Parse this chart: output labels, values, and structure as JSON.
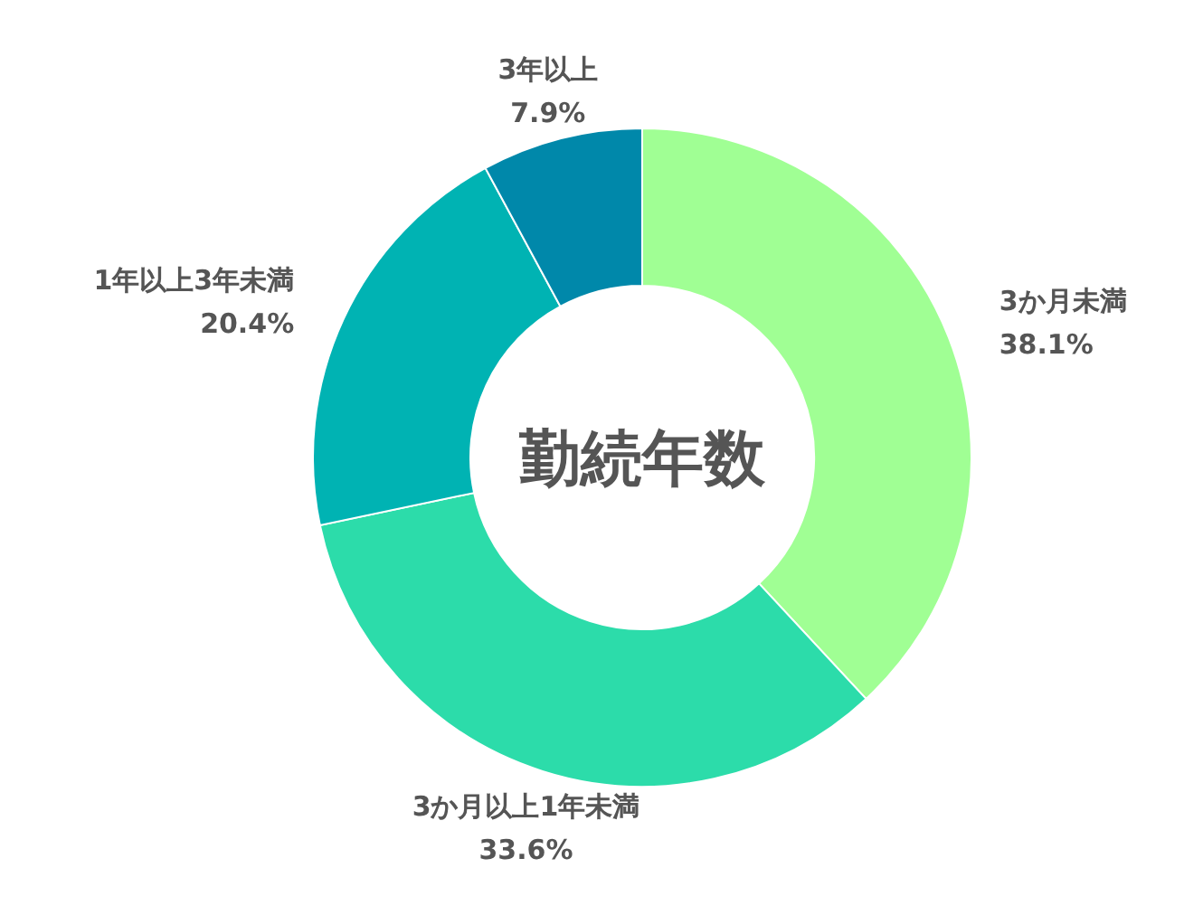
{
  "chart_data": {
    "type": "donut",
    "title": "勤続年数",
    "categories": [
      "3か月未満",
      "3か月以上1年未満",
      "1年以上3年未満",
      "3年以上"
    ],
    "values": [
      38.1,
      33.6,
      20.4,
      7.9
    ],
    "colors": [
      "#a0ff94",
      "#2cdcaa",
      "#00b3b3",
      "#0088aa"
    ],
    "value_labels": [
      "38.1%",
      "33.6%",
      "20.4%",
      "7.9%"
    ]
  }
}
